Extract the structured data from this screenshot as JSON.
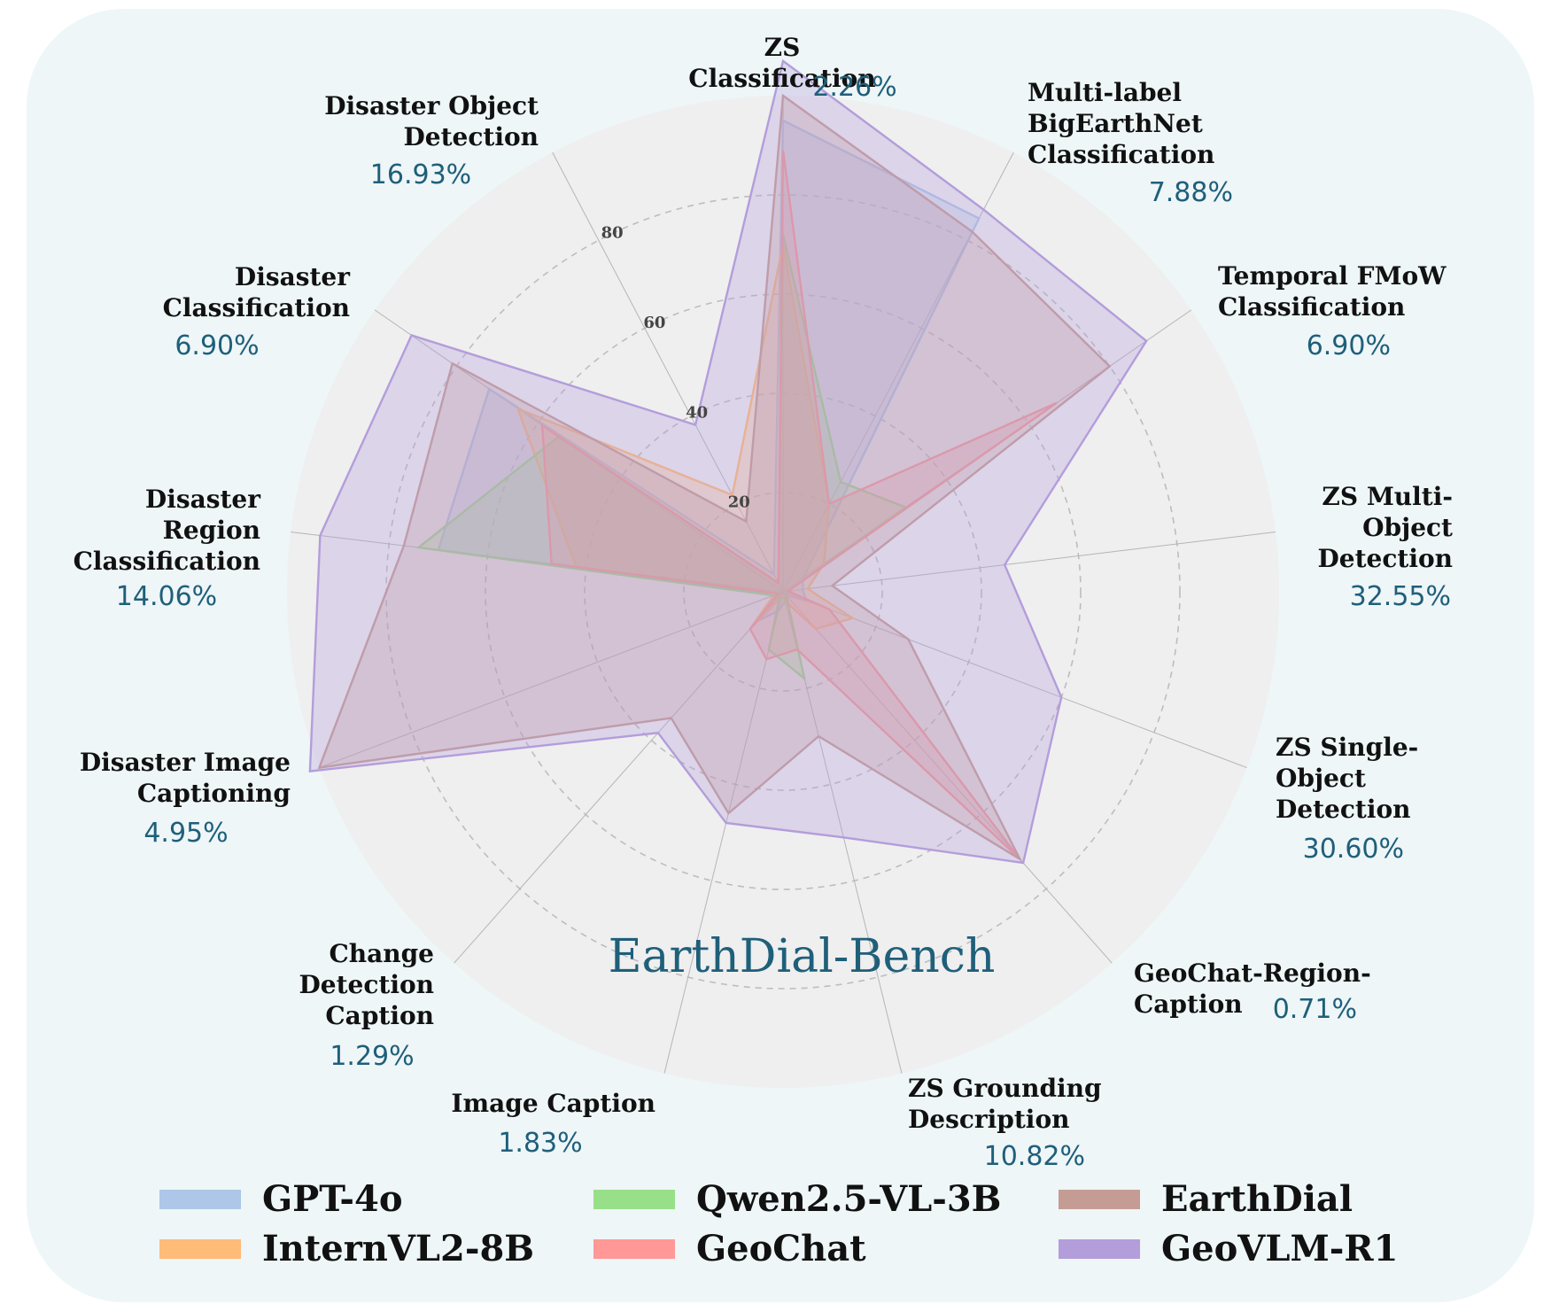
{
  "title": "EarthDial-Bench",
  "chart_data": {
    "type": "radar",
    "title": "EarthDial-Bench",
    "rlim": [
      0,
      100
    ],
    "radial_ticks": [
      20,
      40,
      60,
      80
    ],
    "radial_tick_labels": [
      "20",
      "40",
      "60",
      "80"
    ],
    "axes": [
      {
        "label": [
          "ZS",
          "Classification"
        ],
        "pct": "2.26%"
      },
      {
        "label": [
          "Multi-label",
          "BigEarthNet",
          "Classification"
        ],
        "pct": "7.88%"
      },
      {
        "label": [
          "Temporal FMoW",
          "Classification"
        ],
        "pct": "6.90%"
      },
      {
        "label": [
          "ZS Multi-",
          "Object",
          "Detection"
        ],
        "pct": "32.55%"
      },
      {
        "label": [
          "ZS Single-",
          "Object",
          "Detection"
        ],
        "pct": "30.60%"
      },
      {
        "label": [
          "GeoChat-Region-",
          "Caption"
        ],
        "pct": "0.71%"
      },
      {
        "label": [
          "ZS Grounding",
          "Description"
        ],
        "pct": "10.82%"
      },
      {
        "label": [
          "Image Caption"
        ],
        "pct": "1.83%"
      },
      {
        "label": [
          "Change",
          "Detection",
          "Caption"
        ],
        "pct": "1.29%"
      },
      {
        "label": [
          "Disaster Image",
          "Captioning"
        ],
        "pct": "4.95%"
      },
      {
        "label": [
          "Disaster",
          "Region",
          "Classification"
        ],
        "pct": "14.06%"
      },
      {
        "label": [
          "Disaster",
          "Classification"
        ],
        "pct": "6.90%"
      },
      {
        "label": [
          "Disaster Object",
          "Detection"
        ],
        "pct": "16.93%"
      }
    ],
    "series": [
      {
        "name": "GPT-4o",
        "color": "#aec7e8",
        "values": [
          95,
          85,
          5,
          4,
          5,
          1,
          2,
          4,
          8,
          2,
          70,
          72,
          4
        ]
      },
      {
        "name": "InternVL2-8B",
        "color": "#ffbb78",
        "values": [
          70,
          20,
          10,
          5,
          15,
          10,
          2,
          1,
          10,
          2,
          42,
          65,
          22
        ]
      },
      {
        "name": "Qwen2.5-VL-3B",
        "color": "#98df8a",
        "values": [
          72,
          25,
          30,
          1,
          1,
          1,
          18,
          12,
          1,
          2,
          74,
          55,
          2
        ]
      },
      {
        "name": "GeoChat",
        "color": "#ff9896",
        "values": [
          89,
          20,
          67,
          1,
          10,
          72,
          12,
          14,
          10,
          1,
          47,
          59,
          2
        ]
      },
      {
        "name": "EarthDial",
        "color": "#c49c94",
        "values": [
          100,
          82,
          80,
          10,
          27,
          72,
          30,
          46,
          34,
          100,
          77,
          81,
          16
        ]
      },
      {
        "name": "GeoVLM-R1",
        "color": "#b39ddb",
        "values": [
          107,
          87,
          89,
          45,
          60,
          73,
          51,
          48,
          38,
          102,
          94,
          91,
          38
        ]
      }
    ]
  }
}
